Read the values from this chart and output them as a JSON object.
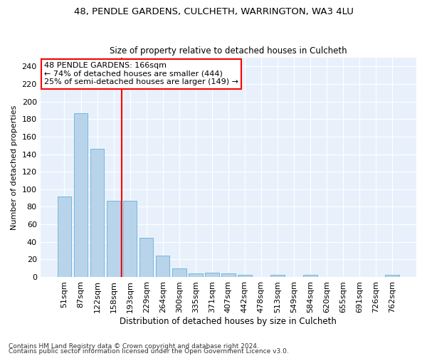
{
  "title": "48, PENDLE GARDENS, CULCHETH, WARRINGTON, WA3 4LU",
  "subtitle": "Size of property relative to detached houses in Culcheth",
  "xlabel": "Distribution of detached houses by size in Culcheth",
  "ylabel": "Number of detached properties",
  "bar_color": "#b8d4ea",
  "bar_edge_color": "#6aaed6",
  "background_color": "#e8f1fb",
  "grid_color": "#ffffff",
  "vline_color": "red",
  "vline_x_idx": 3,
  "annotation_text": "48 PENDLE GARDENS: 166sqm\n← 74% of detached houses are smaller (444)\n25% of semi-detached houses are larger (149) →",
  "annotation_box_color": "white",
  "annotation_box_edge": "red",
  "categories": [
    "51sqm",
    "87sqm",
    "122sqm",
    "158sqm",
    "193sqm",
    "229sqm",
    "264sqm",
    "300sqm",
    "335sqm",
    "371sqm",
    "407sqm",
    "442sqm",
    "478sqm",
    "513sqm",
    "549sqm",
    "584sqm",
    "620sqm",
    "655sqm",
    "691sqm",
    "726sqm",
    "762sqm"
  ],
  "values": [
    92,
    187,
    146,
    87,
    87,
    45,
    24,
    10,
    4,
    5,
    4,
    2,
    0,
    2,
    0,
    2,
    0,
    0,
    0,
    0,
    2
  ],
  "ylim": [
    0,
    250
  ],
  "yticks": [
    0,
    20,
    40,
    60,
    80,
    100,
    120,
    140,
    160,
    180,
    200,
    220,
    240
  ],
  "footnote1": "Contains HM Land Registry data © Crown copyright and database right 2024.",
  "footnote2": "Contains public sector information licensed under the Open Government Licence v3.0."
}
